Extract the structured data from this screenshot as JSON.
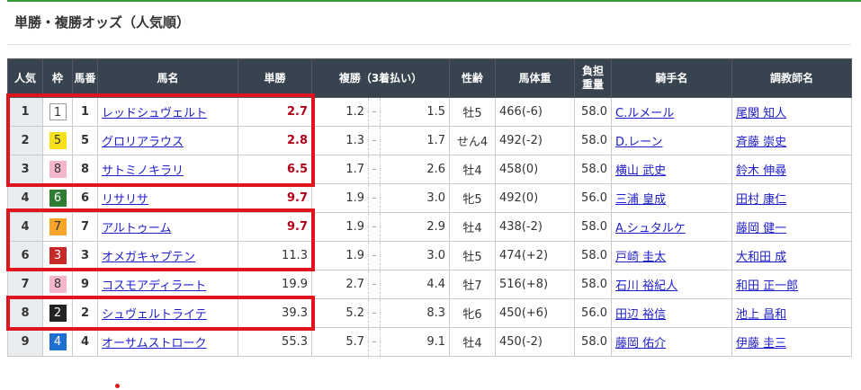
{
  "title": "単勝・複勝オッズ（人気順）",
  "headers": [
    "人気",
    "枠",
    "馬番",
    "馬名",
    "単勝",
    "複勝（3着払い）",
    "性齢",
    "馬体重",
    "負担\n重量",
    "騎手名",
    "調教師名"
  ],
  "rows": [
    {
      "pop": "1",
      "waku": "1",
      "num": "1",
      "horse": "レッドシュヴェルト",
      "win": "2.7",
      "hot": true,
      "place_lo": "1.2",
      "place_hi": "1.5",
      "sexage": "牡5",
      "weight": "466(-6)",
      "load": "58.0",
      "jockey": "C.ルメール",
      "trainer": "尾関 知人"
    },
    {
      "pop": "2",
      "waku": "5",
      "num": "5",
      "horse": "グロリアラウス",
      "win": "2.8",
      "hot": true,
      "place_lo": "1.3",
      "place_hi": "1.7",
      "sexage": "せん4",
      "weight": "492(-2)",
      "load": "58.0",
      "jockey": "D.レーン",
      "trainer": "斉藤 崇史"
    },
    {
      "pop": "3",
      "waku": "8",
      "num": "8",
      "horse": "サトミノキラリ",
      "win": "6.5",
      "hot": true,
      "place_lo": "1.7",
      "place_hi": "2.6",
      "sexage": "牡4",
      "weight": "458(0)",
      "load": "58.0",
      "jockey": "横山 武史",
      "trainer": "鈴木 伸尋"
    },
    {
      "pop": "4",
      "waku": "6",
      "num": "6",
      "horse": "リサリサ",
      "win": "9.7",
      "hot": true,
      "place_lo": "1.9",
      "place_hi": "3.0",
      "sexage": "牝5",
      "weight": "492(0)",
      "load": "56.0",
      "jockey": "三浦 皇成",
      "trainer": "田村 康仁"
    },
    {
      "pop": "4",
      "waku": "7",
      "num": "7",
      "horse": "アルトゥーム",
      "win": "9.7",
      "hot": true,
      "place_lo": "1.9",
      "place_hi": "2.9",
      "sexage": "牡4",
      "weight": "438(-2)",
      "load": "58.0",
      "jockey": "A.シュタルケ",
      "trainer": "藤岡 健一"
    },
    {
      "pop": "6",
      "waku": "3",
      "num": "3",
      "horse": "オメガキャプテン",
      "win": "11.3",
      "hot": false,
      "place_lo": "1.9",
      "place_hi": "3.0",
      "sexage": "牡5",
      "weight": "474(+2)",
      "load": "58.0",
      "jockey": "戸崎 圭太",
      "trainer": "大和田 成"
    },
    {
      "pop": "7",
      "waku": "8",
      "num": "9",
      "horse": "コスモアディラート",
      "win": "19.9",
      "hot": false,
      "place_lo": "2.7",
      "place_hi": "4.4",
      "sexage": "牡7",
      "weight": "516(+8)",
      "load": "58.0",
      "jockey": "石川 裕紀人",
      "trainer": "和田 正一郎"
    },
    {
      "pop": "8",
      "waku": "2",
      "num": "2",
      "horse": "シュヴェルトライテ",
      "win": "39.3",
      "hot": false,
      "place_lo": "5.2",
      "place_hi": "8.3",
      "sexage": "牝6",
      "weight": "450(+6)",
      "load": "56.0",
      "jockey": "田辺 裕信",
      "trainer": "池上 昌和"
    },
    {
      "pop": "9",
      "waku": "4",
      "num": "4",
      "horse": "オーサムストローク",
      "win": "55.3",
      "hot": false,
      "place_lo": "5.7",
      "place_hi": "9.1",
      "sexage": "牡4",
      "weight": "450(-2)",
      "load": "58.0",
      "jockey": "藤岡 佑介",
      "trainer": "伊藤 圭三"
    }
  ],
  "place_separator": "-",
  "waku_colors": {
    "1": [
      "#ffffff",
      "#333333"
    ],
    "2": [
      "#222222",
      "#ffffff"
    ],
    "3": [
      "#c62828",
      "#ffffff"
    ],
    "4": [
      "#1e6fd0",
      "#ffffff"
    ],
    "5": [
      "#f7e11c",
      "#333333"
    ],
    "6": [
      "#2e7d32",
      "#ffffff"
    ],
    "7": [
      "#f7a52a",
      "#333333"
    ],
    "8": [
      "#f4b6cc",
      "#333333"
    ]
  },
  "colors": {
    "header_bg": "#37444f",
    "highlight": "#e0141e",
    "hot_odds": "#b3001b",
    "link": "#1d1dc9"
  }
}
